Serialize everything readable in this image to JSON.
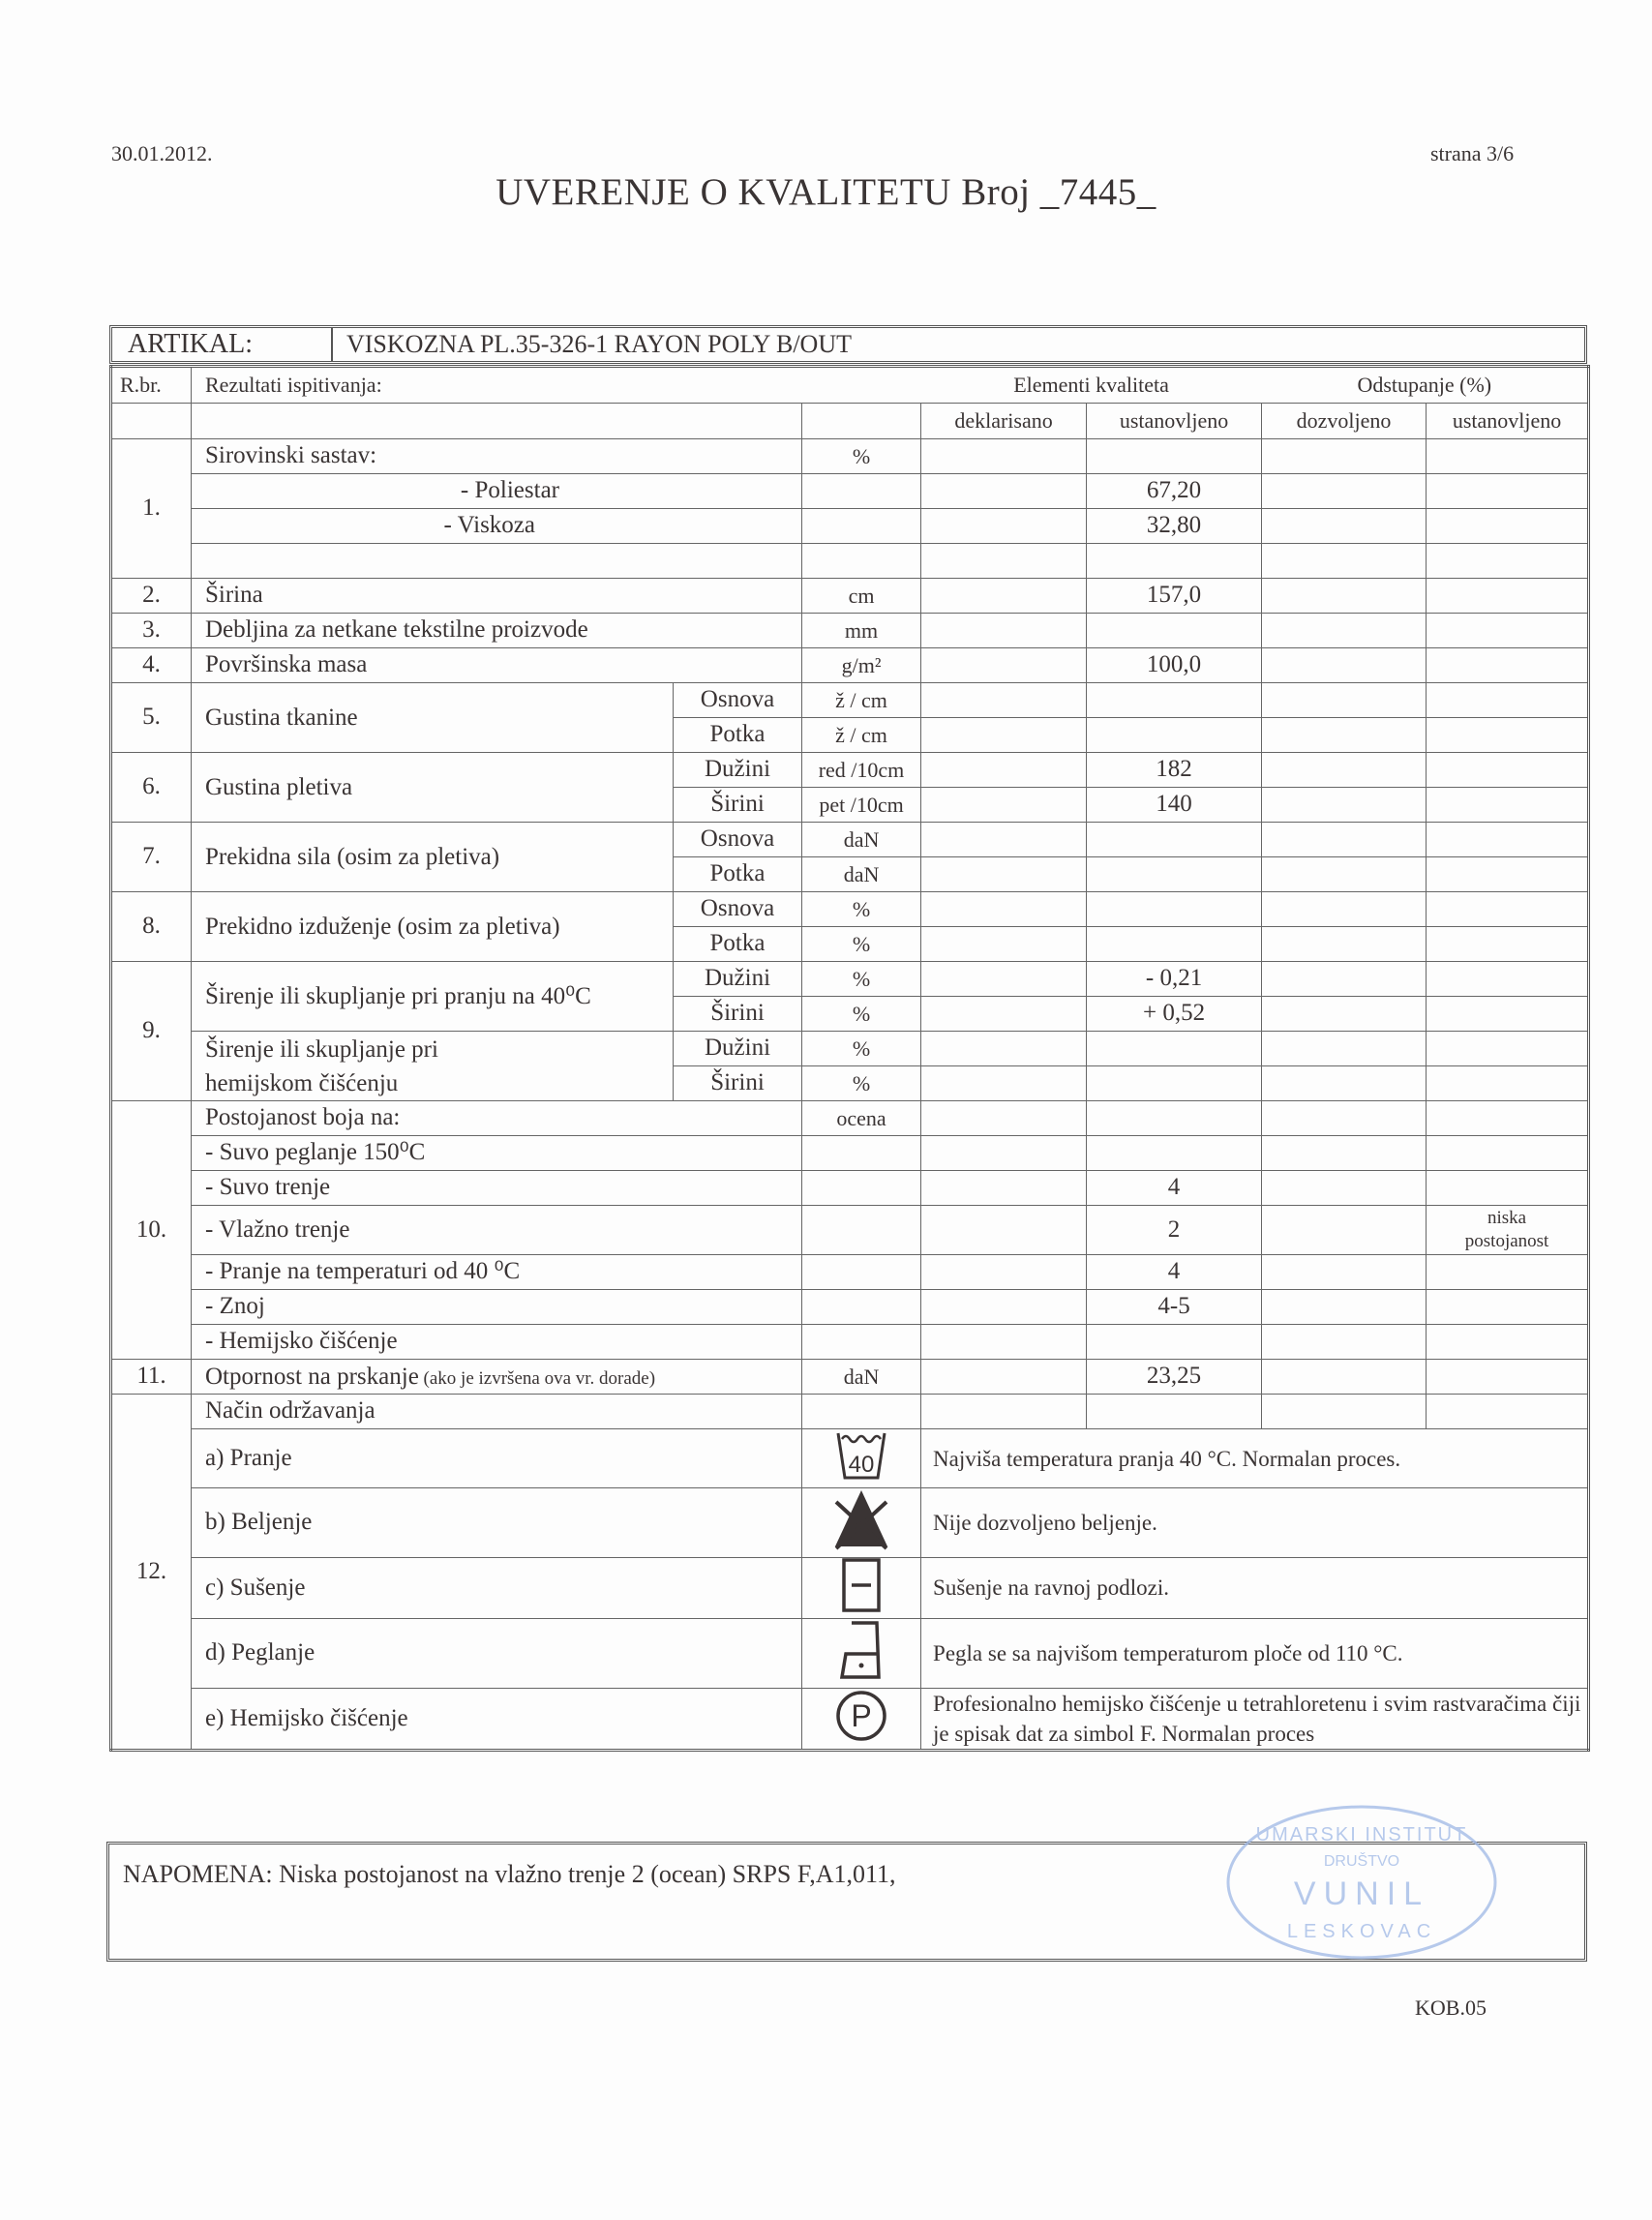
{
  "header": {
    "date": "30.01.2012.",
    "page": "strana 3/6",
    "title": "UVERENJE O KVALITETU  Broj _7445_"
  },
  "artikal": {
    "label": "ARTIKAL:",
    "value": "VISKOZNA PL.35-326-1 RAYON POLY B/OUT"
  },
  "columns": {
    "rbr": "R.br.",
    "results": "Rezultati ispitivanja:",
    "elements": "Elementi kvaliteta",
    "deviation": "Odstupanje (%)",
    "declared": "deklarisano",
    "established": "ustanovljeno",
    "allowed": "dozvoljeno",
    "established_dev": "ustanovljeno"
  },
  "rows": {
    "r1": {
      "no": "1.",
      "label": "Sirovinski sastav:",
      "unit": "%",
      "poly": "- Poliestar",
      "poly_val": "67,20",
      "visc": "- Viskoza",
      "visc_val": "32,80"
    },
    "r2": {
      "no": "2.",
      "label": "Širina",
      "unit": "cm",
      "value": "157,0"
    },
    "r3": {
      "no": "3.",
      "label": "Debljina za netkane tekstilne proizvode",
      "unit": "mm"
    },
    "r4": {
      "no": "4.",
      "label": "Površinska masa",
      "unit": "g/m²",
      "value": "100,0"
    },
    "r5": {
      "no": "5.",
      "label": "Gustina tkanine",
      "sub1": "Osnova",
      "unit1": "ž / cm",
      "sub2": "Potka",
      "unit2": "ž / cm"
    },
    "r6": {
      "no": "6.",
      "label": "Gustina pletiva",
      "sub1": "Dužini",
      "unit1": "red /10cm",
      "val1": "182",
      "sub2": "Širini",
      "unit2": "pet /10cm",
      "val2": "140"
    },
    "r7": {
      "no": "7.",
      "label": "Prekidna sila (osim za pletiva)",
      "sub1": "Osnova",
      "unit1": "daN",
      "sub2": "Potka",
      "unit2": "daN"
    },
    "r8": {
      "no": "8.",
      "label": "Prekidno izduženje (osim za pletiva)",
      "sub1": "Osnova",
      "unit1": "%",
      "sub2": "Potka",
      "unit2": "%"
    },
    "r9": {
      "no": "9.",
      "label_a": "Širenje ili skupljanje pri pranju na 40⁰C",
      "a_sub1": "Dužini",
      "a_unit1": "%",
      "a_val1": "- 0,21",
      "a_sub2": "Širini",
      "a_unit2": "%",
      "a_val2": "+ 0,52",
      "label_b1": "Širenje ili skupljanje pri",
      "label_b2": "hemijskom čišćenju",
      "b_sub1": "Dužini",
      "b_unit1": "%",
      "b_sub2": "Širini",
      "b_unit2": "%"
    },
    "r10": {
      "no": "10.",
      "label": "Postojanost boja na:",
      "unit": "ocena",
      "items": [
        {
          "label": "- Suvo peglanje 150⁰C",
          "value": ""
        },
        {
          "label": "- Suvo trenje",
          "value": "4"
        },
        {
          "label": "- Vlažno trenje",
          "value": "2",
          "note": "niska postojanost"
        },
        {
          "label": "- Pranje na temperaturi od   40 ⁰C",
          "value": "4"
        },
        {
          "label": "- Znoj",
          "value": "4-5"
        },
        {
          "label": "- Hemijsko čišćenje",
          "value": ""
        }
      ]
    },
    "r11": {
      "no": "11.",
      "label": "Otpornost na prskanje",
      "label_note": " (ako je izvršena ova vr. dorade)",
      "unit": "daN",
      "value": "23,25"
    },
    "r12": {
      "no": "12.",
      "label": "Način održavanja",
      "items": [
        {
          "label": "a) Pranje",
          "icon": "wash-40-icon",
          "icon_text": "40",
          "desc": "Najviša temperatura pranja 40 °C. Normalan proces."
        },
        {
          "label": "b) Beljenje",
          "icon": "no-bleach-icon",
          "desc": "Nije dozvoljeno beljenje."
        },
        {
          "label": "c) Sušenje",
          "icon": "dry-flat-icon",
          "desc": "Sušenje na ravnoj podlozi."
        },
        {
          "label": "d) Peglanje",
          "icon": "iron-low-icon",
          "desc": "Pegla se sa najvišom temperaturom ploče od 110 °C."
        },
        {
          "label": "e) Hemijsko čišćenje",
          "icon": "dry-clean-p-icon",
          "icon_text": "P",
          "desc": "Profesionalno hemijsko čišćenje u tetrahloretenu i svim rastvaračima čiji je spisak dat za simbol F. Normalan proces"
        }
      ]
    }
  },
  "note": {
    "text": "NAPOMENA:  Niska postojanost na vlažno trenje 2 (ocean) SRPS F,A1,011,"
  },
  "stamp": {
    "top": "UMARSKI INSTITUT",
    "middle": "DRUŠTVO",
    "name": "VUNIL",
    "bottom": "LESKOVAC",
    "color": "#9fb8e6"
  },
  "footer": {
    "code": "KOB.05"
  }
}
